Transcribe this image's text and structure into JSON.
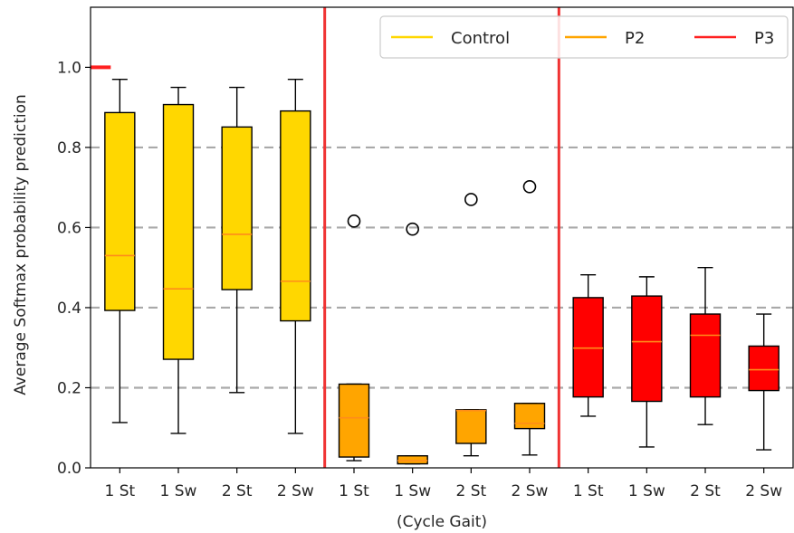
{
  "chart_data": {
    "type": "boxplot",
    "title": "",
    "xlabel": "(Cycle Gait)",
    "ylabel": "Average Softmax probability prediction",
    "ylim": [
      0,
      1.15
    ],
    "yticks": [
      "0.0",
      "0.2",
      "0.4",
      "0.6",
      "0.8",
      "1.0"
    ],
    "ytick_values": [
      0.0,
      0.2,
      0.4,
      0.6,
      0.8,
      1.0
    ],
    "categories": [
      "1 St",
      "1 Sw",
      "2 St",
      "2 Sw",
      "1 St",
      "1 Sw",
      "2 St",
      "2 Sw",
      "1 St",
      "1 Sw",
      "2 St",
      "2 Sw"
    ],
    "grid": "horizontal dashed at 0.2, 0.4, 0.6, 0.8",
    "legend_position": "top-right",
    "group_dividers_after": [
      4,
      8
    ],
    "colors": {
      "control": "#ffd700",
      "p2": "#ffa500",
      "p3": "#ff0000",
      "divider": "#f03232",
      "legend_control": "#ffd700",
      "legend_p2": "#ffa500",
      "legend_p3": "#ff2020",
      "grid": "#a9a9a9",
      "median_line": "#ff8c1a"
    },
    "series": [
      {
        "name": "Control",
        "color": "#ffd700",
        "boxes": [
          {
            "category": "1 St",
            "whisker_low": 0.113,
            "q1": 0.393,
            "median": 0.53,
            "q3": 0.887,
            "whisker_high": 0.97,
            "outliers": []
          },
          {
            "category": "1 Sw",
            "whisker_low": 0.086,
            "q1": 0.271,
            "median": 0.447,
            "q3": 0.907,
            "whisker_high": 0.95,
            "outliers": []
          },
          {
            "category": "2 St",
            "whisker_low": 0.188,
            "q1": 0.445,
            "median": 0.583,
            "q3": 0.851,
            "whisker_high": 0.95,
            "outliers": []
          },
          {
            "category": "2 Sw",
            "whisker_low": 0.086,
            "q1": 0.367,
            "median": 0.466,
            "q3": 0.891,
            "whisker_high": 0.97,
            "outliers": []
          }
        ]
      },
      {
        "name": "P2",
        "color": "#ffa500",
        "boxes": [
          {
            "category": "1 St",
            "whisker_low": 0.018,
            "q1": 0.027,
            "median": 0.125,
            "q3": 0.209,
            "whisker_high": 0.209,
            "outliers": [
              0.616
            ]
          },
          {
            "category": "1 Sw",
            "whisker_low": 0.01,
            "q1": 0.01,
            "median": 0.018,
            "q3": 0.03,
            "whisker_high": 0.03,
            "outliers": [
              0.596
            ]
          },
          {
            "category": "2 St",
            "whisker_low": 0.03,
            "q1": 0.061,
            "median": 0.143,
            "q3": 0.145,
            "whisker_high": 0.145,
            "outliers": [
              0.67
            ]
          },
          {
            "category": "2 Sw",
            "whisker_low": 0.032,
            "q1": 0.098,
            "median": 0.111,
            "q3": 0.161,
            "whisker_high": 0.161,
            "outliers": [
              0.702
            ]
          }
        ]
      },
      {
        "name": "P3",
        "color": "#ff0000",
        "boxes": [
          {
            "category": "1 St",
            "whisker_low": 0.129,
            "q1": 0.177,
            "median": 0.299,
            "q3": 0.425,
            "whisker_high": 0.482,
            "outliers": []
          },
          {
            "category": "1 Sw",
            "whisker_low": 0.052,
            "q1": 0.166,
            "median": 0.315,
            "q3": 0.429,
            "whisker_high": 0.477,
            "outliers": []
          },
          {
            "category": "2 St",
            "whisker_low": 0.108,
            "q1": 0.177,
            "median": 0.331,
            "q3": 0.384,
            "whisker_high": 0.5,
            "outliers": []
          },
          {
            "category": "2 Sw",
            "whisker_low": 0.045,
            "q1": 0.193,
            "median": 0.245,
            "q3": 0.304,
            "whisker_high": 0.384,
            "outliers": []
          }
        ]
      }
    ],
    "annotations": [
      {
        "type": "marker-line",
        "color": "#ff2020",
        "y": 1.0,
        "category_index": 0,
        "side": "left"
      }
    ]
  }
}
